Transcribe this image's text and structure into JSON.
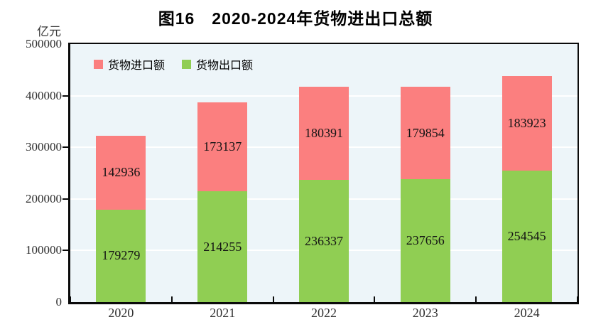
{
  "chart": {
    "title": "图16　2020-2024年货物进出口总额",
    "unit_label": "亿元"
  },
  "chart_data": {
    "type": "bar",
    "stacked": true,
    "title": "图16　2020-2024年货物进出口总额",
    "ylabel": "亿元",
    "xlabel": "",
    "categories": [
      "2020",
      "2021",
      "2022",
      "2023",
      "2024"
    ],
    "series": [
      {
        "name": "货物进口额",
        "color": "#fb7f7f",
        "stack_order": "top",
        "values": [
          142936,
          173137,
          180391,
          179854,
          183923
        ]
      },
      {
        "name": "货物出口额",
        "color": "#90ce53",
        "stack_order": "bottom",
        "values": [
          179279,
          214255,
          236337,
          237656,
          254545
        ]
      }
    ],
    "totals": [
      322215,
      387392,
      416728,
      417510,
      438468
    ],
    "ylim": [
      0,
      500000
    ],
    "yticks": [
      0,
      100000,
      200000,
      300000,
      400000,
      500000
    ],
    "grid": "horizontal",
    "grid_color": "#ffffff",
    "plot_bg_color": "#edf5f9",
    "frame_color": "#0a0a0a",
    "legend_position": "top-left-inside",
    "bar_labels": "inside-center"
  }
}
